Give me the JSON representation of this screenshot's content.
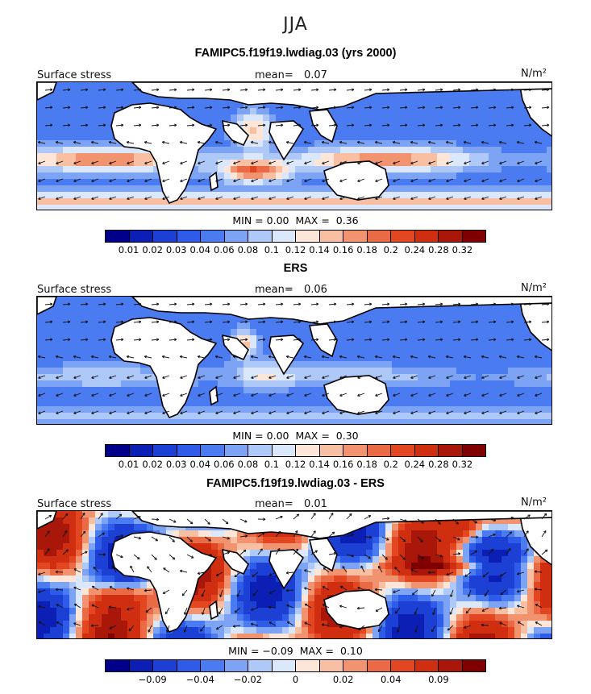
{
  "season": "JJA",
  "colors": {
    "scale": [
      "#00008b",
      "#0b1fb5",
      "#1c3fd4",
      "#2e5ce8",
      "#4a7bf0",
      "#7ca3f4",
      "#aec8f7",
      "#dbe8fb",
      "#fde6d8",
      "#f8bfa3",
      "#f2936f",
      "#ea6a45",
      "#e24721",
      "#cf2e10",
      "#a9170b",
      "#7f0000"
    ]
  },
  "panels": [
    {
      "title": "FAMIPC5.f19f19.lwdiag.03 (yrs 2000)",
      "left_label": "Surface stress",
      "mean_label": "mean=",
      "mean_value": "0.07",
      "units": "N/m²",
      "min_label": "MIN =",
      "min_value": "0.00",
      "max_label": "MAX =",
      "max_value": "0.36",
      "tick_labels": [
        "0.01",
        "0.02",
        "0.03",
        "0.04",
        "0.06",
        "0.08",
        "0.1",
        "0.12",
        "0.14",
        "0.16",
        "0.18",
        "0.2",
        "0.24",
        "0.28",
        "0.32"
      ]
    },
    {
      "title": "ERS",
      "left_label": "Surface stress",
      "mean_label": "mean=",
      "mean_value": "0.06",
      "units": "N/m²",
      "min_label": "MIN =",
      "min_value": "0.00",
      "max_label": "MAX =",
      "max_value": "0.30",
      "tick_labels": [
        "0.01",
        "0.02",
        "0.03",
        "0.04",
        "0.06",
        "0.08",
        "0.1",
        "0.12",
        "0.14",
        "0.16",
        "0.18",
        "0.2",
        "0.24",
        "0.28",
        "0.32"
      ]
    },
    {
      "title": "FAMIPC5.f19f19.lwdiag.03 - ERS",
      "left_label": "Surface stress",
      "mean_label": "mean=",
      "mean_value": "0.01",
      "units": "N/m²",
      "min_label": "MIN =",
      "min_value": "−0.09",
      "max_label": "MAX =",
      "max_value": "0.10",
      "tick_labels": [
        "−0.09",
        "",
        "−0.04",
        "",
        "−0.02",
        "",
        "0",
        "",
        "0.02",
        "",
        "0.04",
        "",
        "0.09"
      ]
    }
  ],
  "chart_data": [
    {
      "type": "heatmap",
      "title": "FAMIPC5.f19f19.lwdiag.03 (yrs 2000)",
      "variable": "Surface stress",
      "units": "N/m²",
      "mean": 0.07,
      "min": 0.0,
      "max": 0.36,
      "levels": [
        0.01,
        0.02,
        0.03,
        0.04,
        0.06,
        0.08,
        0.1,
        0.12,
        0.14,
        0.16,
        0.18,
        0.2,
        0.24,
        0.28,
        0.32
      ],
      "vectors": true
    },
    {
      "type": "heatmap",
      "title": "ERS",
      "variable": "Surface stress",
      "units": "N/m²",
      "mean": 0.06,
      "min": 0.0,
      "max": 0.3,
      "levels": [
        0.01,
        0.02,
        0.03,
        0.04,
        0.06,
        0.08,
        0.1,
        0.12,
        0.14,
        0.16,
        0.18,
        0.2,
        0.24,
        0.28,
        0.32
      ],
      "vectors": true
    },
    {
      "type": "heatmap",
      "title": "FAMIPC5.f19f19.lwdiag.03 - ERS",
      "variable": "Surface stress",
      "units": "N/m²",
      "mean": 0.01,
      "min": -0.09,
      "max": 0.1,
      "levels": [
        -0.09,
        -0.04,
        -0.02,
        0,
        0.02,
        0.04,
        0.09
      ],
      "vectors": true
    }
  ]
}
